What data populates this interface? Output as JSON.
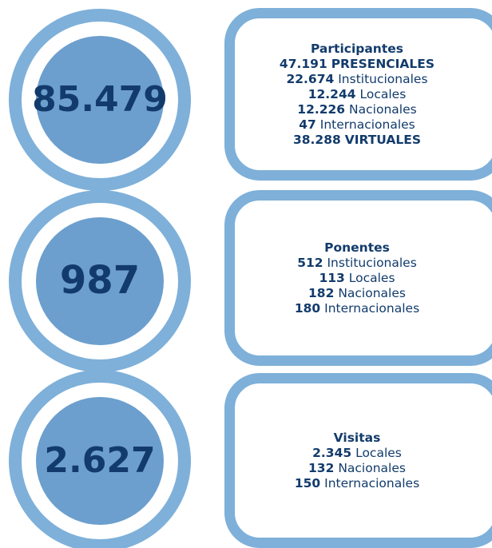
{
  "sections": [
    {
      "total": "85.479",
      "title": "Participantes",
      "lines": [
        {
          "number": "47.191",
          "label": "PRESENCIALES",
          "bold": true
        },
        {
          "number": "22.674",
          "label": "Institucionales"
        },
        {
          "number": "12.244",
          "label": "Locales"
        },
        {
          "number": "12.226",
          "label": "Nacionales"
        },
        {
          "number": "47",
          "label": "Internacionales"
        },
        {
          "number": "38.288",
          "label": "VIRTUALES",
          "bold": true
        }
      ]
    },
    {
      "total": "987",
      "title": "Ponentes",
      "lines": [
        {
          "number": "512",
          "label": "Institucionales"
        },
        {
          "number": "113",
          "label": "Locales"
        },
        {
          "number": "182",
          "label": "Nacionales"
        },
        {
          "number": "180",
          "label": "Internacionales"
        }
      ]
    },
    {
      "total": "2.627",
      "title": "Visitas",
      "lines": [
        {
          "number": "2.345",
          "label": "Locales"
        },
        {
          "number": "132",
          "label": "Nacionales"
        },
        {
          "number": "150",
          "label": "Internacionales"
        }
      ]
    }
  ]
}
